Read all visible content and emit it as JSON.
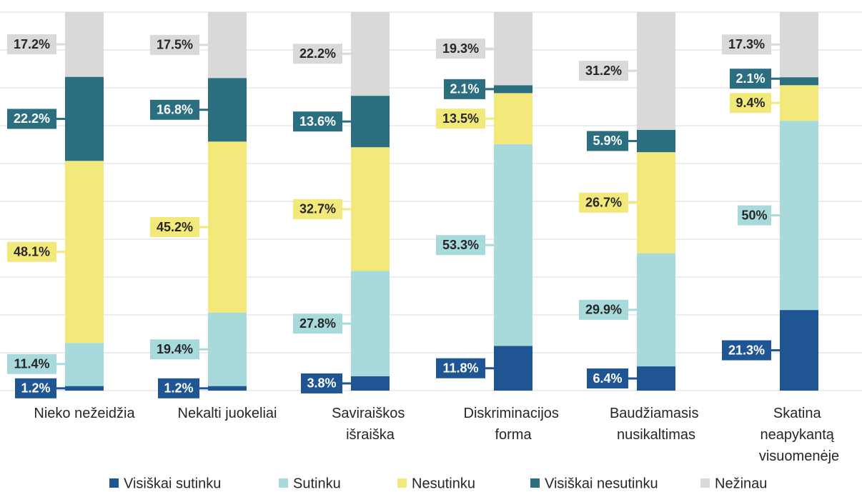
{
  "chart_data": {
    "type": "stacked_bar",
    "categories": [
      "Nieko nežeidžia",
      "Nekalti juokeliai",
      "Saviraiškos išraiška",
      "Diskriminacijos forma",
      "Baudžiamasis nusikaltimas",
      "Skatina neapykantą visuomenėje"
    ],
    "series": [
      {
        "name": "Visiškai sutinku",
        "color": "#1f5592",
        "values": [
          1.2,
          1.2,
          3.8,
          11.8,
          6.4,
          21.3
        ],
        "value_labels": [
          "1.2%",
          "1.2%",
          "3.8%",
          "11.8%",
          "6.4%",
          "21.3%"
        ]
      },
      {
        "name": "Sutinku",
        "color": "#a8dadb",
        "values": [
          11.4,
          19.4,
          27.8,
          53.3,
          29.9,
          50
        ],
        "value_labels": [
          "11.4%",
          "19.4%",
          "27.8%",
          "53.3%",
          "29.9%",
          "50%"
        ]
      },
      {
        "name": "Nesutinku",
        "color": "#f2e97a",
        "values": [
          48.1,
          45.2,
          32.7,
          13.5,
          26.7,
          9.4
        ],
        "value_labels": [
          "48.1%",
          "45.2%",
          "32.7%",
          "13.5%",
          "26.7%",
          "9.4%"
        ]
      },
      {
        "name": "Visiškai nesutinku",
        "color": "#2a6e7f",
        "values": [
          22.2,
          16.8,
          13.6,
          2.1,
          5.9,
          2.1
        ],
        "value_labels": [
          "22.2%",
          "16.8%",
          "13.6%",
          "2.1%",
          "5.9%",
          "2.1%"
        ]
      },
      {
        "name": "Nežinau",
        "color": "#d9d9d9",
        "values": [
          17.2,
          17.5,
          22.2,
          19.3,
          31.2,
          17.3
        ],
        "value_labels": [
          "17.2%",
          "17.5%",
          "22.2%",
          "19.3%",
          "31.2%",
          "17.3%"
        ]
      }
    ],
    "ylim": [
      0,
      100
    ],
    "yticks": [
      0,
      10,
      20,
      30,
      40,
      50,
      60,
      70,
      80,
      90,
      100
    ],
    "grid": true,
    "legend": "bottom"
  }
}
